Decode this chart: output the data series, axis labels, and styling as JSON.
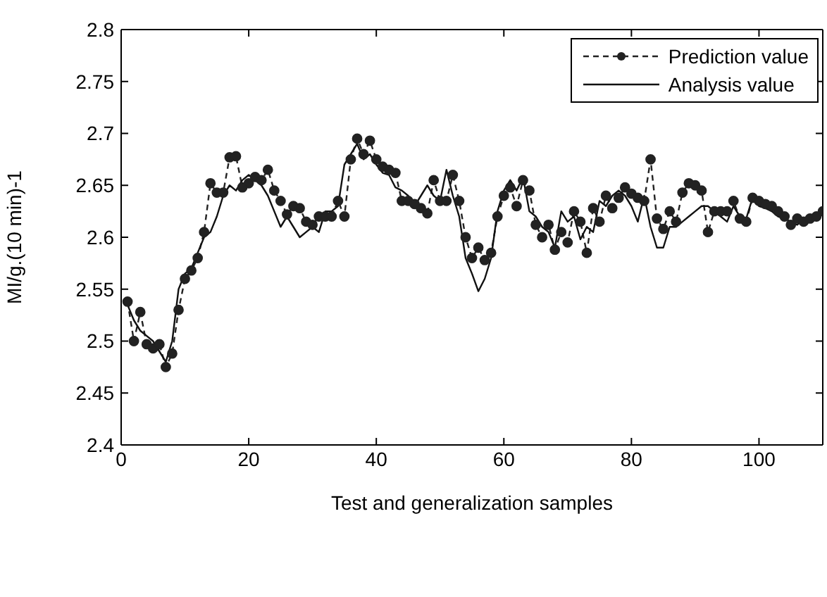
{
  "chart_data": {
    "type": "line",
    "xlabel": "Test and generalization samples",
    "ylabel": "MI/g.(10 min)-1",
    "xlim": [
      0,
      110
    ],
    "xticks": [
      0,
      20,
      40,
      60,
      80,
      100
    ],
    "ylim": [
      2.4,
      2.8
    ],
    "yticks": [
      2.4,
      2.45,
      2.5,
      2.55,
      2.6,
      2.65,
      2.7,
      2.75,
      2.8
    ],
    "legend": "top right",
    "grid": false,
    "x": [
      1,
      2,
      3,
      4,
      5,
      6,
      7,
      8,
      9,
      10,
      11,
      12,
      13,
      14,
      15,
      16,
      17,
      18,
      19,
      20,
      21,
      22,
      23,
      24,
      25,
      26,
      27,
      28,
      29,
      30,
      31,
      32,
      33,
      34,
      35,
      36,
      37,
      38,
      39,
      40,
      41,
      42,
      43,
      44,
      45,
      46,
      47,
      48,
      49,
      50,
      51,
      52,
      53,
      54,
      55,
      56,
      57,
      58,
      59,
      60,
      61,
      62,
      63,
      64,
      65,
      66,
      67,
      68,
      69,
      70,
      71,
      72,
      73,
      74,
      75,
      76,
      77,
      78,
      79,
      80,
      81,
      82,
      83,
      84,
      85,
      86,
      87,
      88,
      89,
      90,
      91,
      92,
      93,
      94,
      95,
      96,
      97,
      98,
      99,
      100,
      101,
      102,
      103,
      104,
      105,
      106,
      107,
      108,
      109,
      110
    ],
    "series": [
      {
        "name": "Prediction value",
        "color": "#222222",
        "marker": "circle",
        "line_style": "dashed",
        "values": [
          2.538,
          2.5,
          2.528,
          2.497,
          2.493,
          2.497,
          2.475,
          2.488,
          2.53,
          2.56,
          2.568,
          2.58,
          2.605,
          2.652,
          2.643,
          2.643,
          2.677,
          2.678,
          2.648,
          2.652,
          2.658,
          2.655,
          2.665,
          2.645,
          2.635,
          2.622,
          2.63,
          2.628,
          2.615,
          2.612,
          2.62,
          2.62,
          2.62,
          2.635,
          2.62,
          2.675,
          2.695,
          2.68,
          2.693,
          2.675,
          2.668,
          2.665,
          2.662,
          2.635,
          2.635,
          2.632,
          2.628,
          2.623,
          2.655,
          2.635,
          2.635,
          2.66,
          2.635,
          2.6,
          2.58,
          2.59,
          2.578,
          2.585,
          2.62,
          2.64,
          2.648,
          2.63,
          2.655,
          2.645,
          2.612,
          2.6,
          2.612,
          2.588,
          2.605,
          2.595,
          2.625,
          2.615,
          2.585,
          2.628,
          2.615,
          2.64,
          2.628,
          2.638,
          2.648,
          2.642,
          2.638,
          2.635,
          2.675,
          2.618,
          2.608,
          2.625,
          2.615,
          2.643,
          2.652,
          2.65,
          2.645,
          2.605,
          2.625,
          2.625,
          2.625,
          2.635,
          2.618,
          2.615,
          2.638,
          2.635,
          2.632,
          2.63,
          2.625,
          2.62,
          2.612,
          2.618,
          2.615,
          2.618,
          2.62,
          2.625
        ]
      },
      {
        "name": "Analysis value",
        "color": "#111111",
        "marker": "none",
        "line_style": "solid",
        "values": [
          2.535,
          2.52,
          2.51,
          2.505,
          2.5,
          2.49,
          2.48,
          2.5,
          2.55,
          2.565,
          2.57,
          2.585,
          2.6,
          2.605,
          2.62,
          2.64,
          2.65,
          2.645,
          2.655,
          2.66,
          2.655,
          2.65,
          2.64,
          2.625,
          2.61,
          2.62,
          2.61,
          2.6,
          2.605,
          2.61,
          2.605,
          2.625,
          2.625,
          2.63,
          2.67,
          2.68,
          2.69,
          2.675,
          2.68,
          2.67,
          2.662,
          2.66,
          2.648,
          2.645,
          2.64,
          2.63,
          2.64,
          2.65,
          2.64,
          2.635,
          2.665,
          2.64,
          2.62,
          2.58,
          2.565,
          2.548,
          2.56,
          2.58,
          2.625,
          2.645,
          2.655,
          2.645,
          2.658,
          2.625,
          2.62,
          2.61,
          2.605,
          2.59,
          2.625,
          2.615,
          2.62,
          2.598,
          2.61,
          2.605,
          2.635,
          2.63,
          2.64,
          2.645,
          2.64,
          2.63,
          2.615,
          2.64,
          2.61,
          2.59,
          2.59,
          2.61,
          2.61,
          2.615,
          2.62,
          2.625,
          2.63,
          2.63,
          2.625,
          2.62,
          2.615,
          2.63,
          2.62,
          2.618,
          2.638,
          2.63,
          2.628,
          2.625,
          2.62,
          2.618,
          2.615,
          2.612,
          2.618,
          2.62,
          2.62,
          2.622
        ]
      }
    ]
  }
}
